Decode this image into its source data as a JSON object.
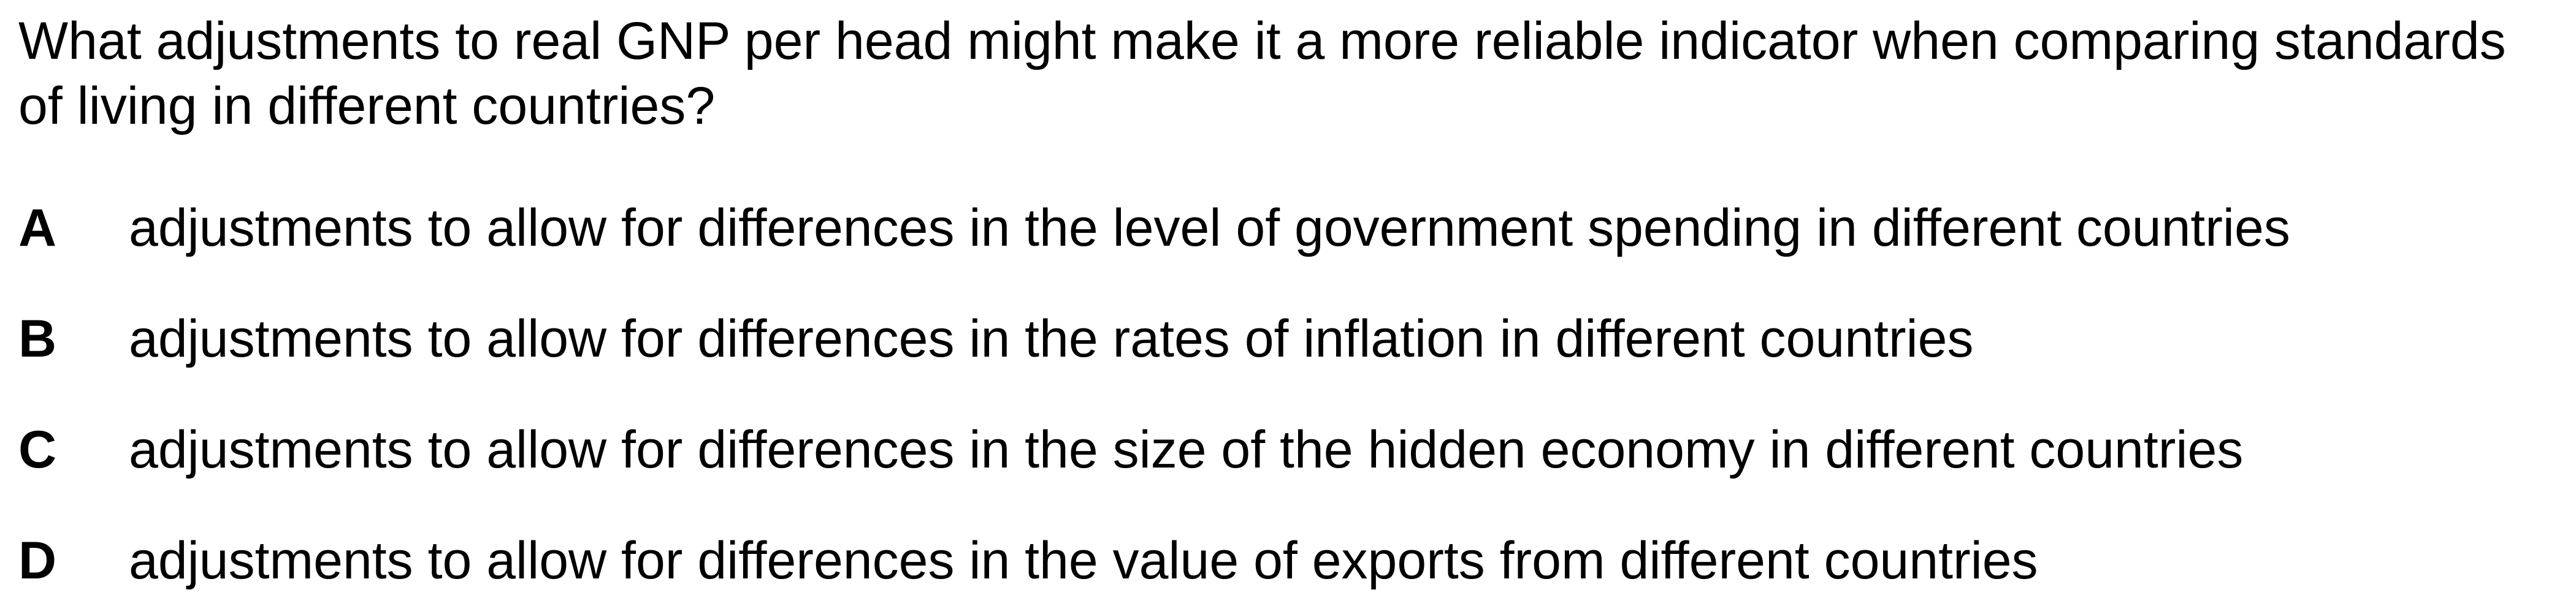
{
  "question": {
    "text": "What adjustments to real GNP per head might make it a more reliable indicator when comparing standards of living in different countries?"
  },
  "options": [
    {
      "letter": "A",
      "text": "adjustments to allow for differences in the level of government spending in different countries"
    },
    {
      "letter": "B",
      "text": "adjustments to allow for differences in the rates of inflation in different countries"
    },
    {
      "letter": "C",
      "text": "adjustments to allow for differences in the size of the hidden economy in different countries"
    },
    {
      "letter": "D",
      "text": "adjustments to allow for differences in the value of exports from different countries"
    }
  ]
}
